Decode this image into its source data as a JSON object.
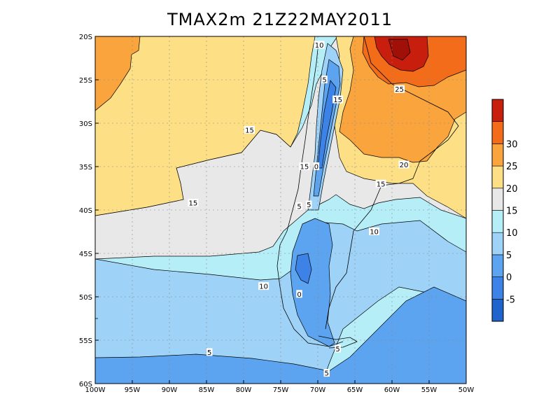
{
  "title": "TMAX2m  21Z22MAY2011",
  "chart_data": {
    "type": "heatmap",
    "title": "TMAX2m  21Z22MAY2011",
    "variable": "TMAX2m",
    "valid_time": "21Z22MAY2011",
    "xlim": [
      -100,
      -50
    ],
    "ylim": [
      -60,
      -20
    ],
    "x_ticks": [
      "100W",
      "95W",
      "90W",
      "85W",
      "80W",
      "75W",
      "70W",
      "65W",
      "60W",
      "55W",
      "50W"
    ],
    "y_ticks": [
      "20S",
      "25S",
      "30S",
      "35S",
      "40S",
      "45S",
      "50S",
      "55S",
      "60S"
    ],
    "grid": true,
    "colorbar": {
      "labels": [
        "-5",
        "0",
        "5",
        "10",
        "15",
        "20",
        "25",
        "30"
      ],
      "bins": [
        {
          "range": "<-5",
          "color": "#1e64cc"
        },
        {
          "range": "-5 to 0",
          "color": "#3d82e6"
        },
        {
          "range": "0 to 5",
          "color": "#5ca3f0"
        },
        {
          "range": "5 to 10",
          "color": "#9fd2f7"
        },
        {
          "range": "10 to 15",
          "color": "#b6eef8"
        },
        {
          "range": "15 to 20",
          "color": "#e8e8e8"
        },
        {
          "range": "20 to 25",
          "color": "#fde086"
        },
        {
          "range": "25 to 30",
          "color": "#f9a43d"
        },
        {
          "range": "30 to 35",
          "color": "#f26c19"
        },
        {
          "range": ">35",
          "color": "#c81e0e"
        }
      ]
    },
    "contour_labels": [
      {
        "value": "10",
        "lon": -69.8,
        "lat": -21.0
      },
      {
        "value": "5",
        "lon": -69.1,
        "lat": -25.0
      },
      {
        "value": "15",
        "lon": -67.3,
        "lat": -27.3
      },
      {
        "value": "25",
        "lon": -59.0,
        "lat": -26.1
      },
      {
        "value": "15",
        "lon": -79.2,
        "lat": -30.8
      },
      {
        "value": "15",
        "lon": -71.8,
        "lat": -35.0
      },
      {
        "value": "0",
        "lon": -70.2,
        "lat": -35.0
      },
      {
        "value": "20",
        "lon": -58.4,
        "lat": -34.8
      },
      {
        "value": "15",
        "lon": -61.5,
        "lat": -37.0
      },
      {
        "value": "15",
        "lon": -86.8,
        "lat": -39.2
      },
      {
        "value": "5",
        "lon": -72.5,
        "lat": -39.6
      },
      {
        "value": "5",
        "lon": -71.2,
        "lat": -39.4
      },
      {
        "value": "10",
        "lon": -62.4,
        "lat": -42.5
      },
      {
        "value": "10",
        "lon": -77.3,
        "lat": -48.8
      },
      {
        "value": "0",
        "lon": -72.5,
        "lat": -49.7
      },
      {
        "value": "5",
        "lon": -67.3,
        "lat": -56.0
      },
      {
        "value": "5",
        "lon": -84.6,
        "lat": -56.4
      },
      {
        "value": "5",
        "lon": -68.8,
        "lat": -58.8
      }
    ]
  }
}
